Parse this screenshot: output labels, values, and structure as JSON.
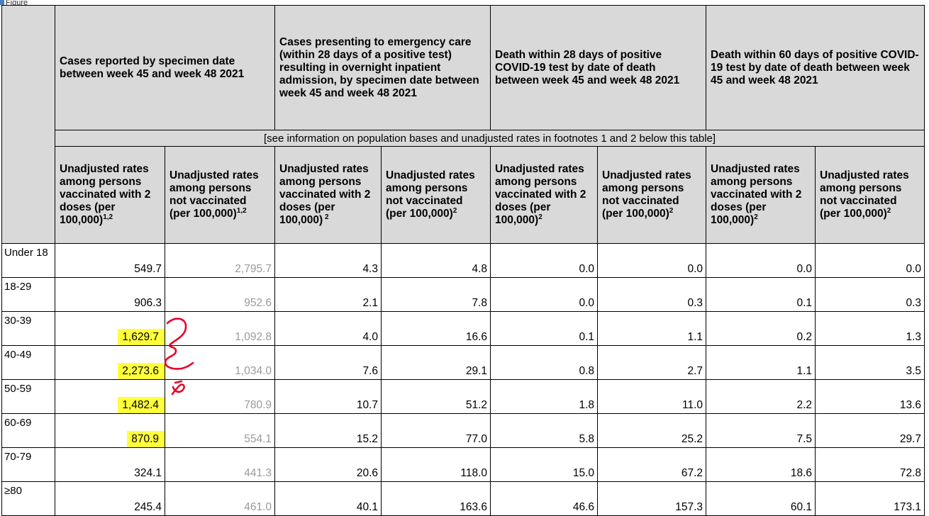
{
  "figure_label": "Figure",
  "header": {
    "groups": [
      "Cases reported by specimen date between week 45 and week 48 2021",
      "Cases presenting to emergency care (within 28 days of a positive test) resulting in overnight inpatient admission, by specimen date between week 45 and week 48 2021",
      "Death within 28 days of positive COVID-19 test by date of death between week 45 and week 48 2021",
      "Death within 60 days of positive COVID-19 test by date of death between week 45 and week 48 2021"
    ],
    "note": "[see information on population bases and unadjusted rates in footnotes 1 and 2 below this table]",
    "sub": [
      {
        "text": "Unadjusted rates among persons vaccinated with 2 doses (per 100,000)",
        "sup": "1,2"
      },
      {
        "text": "Unadjusted rates among persons not vaccinated (per 100,000)",
        "sup": "1,2"
      },
      {
        "text": "Unadjusted rates among persons vaccinated with 2 doses (per 100,000)",
        "sup": " 2"
      },
      {
        "text": "Unadjusted rates among persons not vaccinated (per 100,000)",
        "sup": "2"
      },
      {
        "text": "Unadjusted rates among persons vaccinated with 2 doses (per 100,000)",
        "sup": "2"
      },
      {
        "text": "Unadjusted rates among persons not vaccinated (per 100,000)",
        "sup": "2"
      },
      {
        "text": "Unadjusted rates among persons vaccinated with 2 doses (per 100,000)",
        "sup": "2"
      },
      {
        "text": "Unadjusted rates among persons not vaccinated (per 100,000)",
        "sup": "2"
      }
    ]
  },
  "rows": [
    {
      "age": "Under 18",
      "values": [
        "549.7",
        "2,795.7",
        "4.3",
        "4.8",
        "0.0",
        "0.0",
        "0.0",
        "0.0"
      ]
    },
    {
      "age": "18-29",
      "values": [
        "906.3",
        "952.6",
        "2.1",
        "7.8",
        "0.0",
        "0.3",
        "0.1",
        "0.3"
      ]
    },
    {
      "age": "30-39",
      "values": [
        "1,629.7",
        "1,092.8",
        "4.0",
        "16.6",
        "0.1",
        "1.1",
        "0.2",
        "1.3"
      ]
    },
    {
      "age": "40-49",
      "values": [
        "2,273.6",
        "1,034.0",
        "7.6",
        "29.1",
        "0.8",
        "2.7",
        "1.1",
        "3.5"
      ]
    },
    {
      "age": "50-59",
      "values": [
        "1,482.4",
        "780.9",
        "10.7",
        "51.2",
        "1.8",
        "11.0",
        "2.2",
        "13.6"
      ]
    },
    {
      "age": "60-69",
      "values": [
        "870.9",
        "554.1",
        "15.2",
        "77.0",
        "5.8",
        "25.2",
        "7.5",
        "29.7"
      ]
    },
    {
      "age": "70-79",
      "values": [
        "324.1",
        "441.3",
        "20.6",
        "118.0",
        "15.0",
        "67.2",
        "18.6",
        "72.8"
      ]
    },
    {
      "age": "≥80",
      "values": [
        "245.4",
        "461.0",
        "40.1",
        "163.6",
        "46.6",
        "157.3",
        "60.1",
        "173.1"
      ]
    }
  ],
  "highlighted_cells": [
    [
      2,
      0
    ],
    [
      3,
      0
    ],
    [
      4,
      0
    ],
    [
      5,
      0
    ]
  ],
  "highlight_color": "#ffff3c",
  "grey_text_color": "#9a9a9a",
  "header_bg": "#d9d9d9",
  "annotation_color": "#e8002a"
}
